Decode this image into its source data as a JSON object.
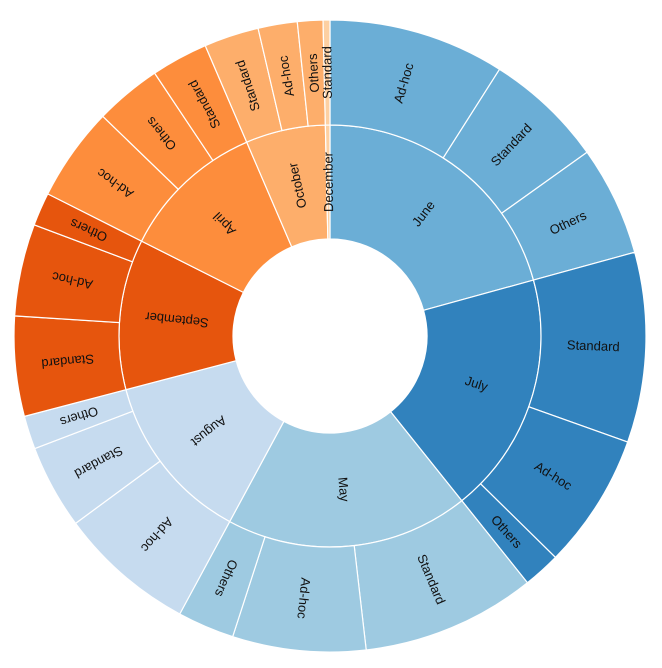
{
  "chart_data": {
    "type": "sunburst",
    "title": "",
    "unit": "percent of total (estimated)",
    "children": [
      {
        "name": "June",
        "color": "#6baed6",
        "children": [
          {
            "name": "Ad-hoc",
            "value": 9.0
          },
          {
            "name": "Standard",
            "value": 6.1
          },
          {
            "name": "Others",
            "value": 5.6
          }
        ]
      },
      {
        "name": "July",
        "color": "#3182bd",
        "children": [
          {
            "name": "Standard",
            "value": 9.7
          },
          {
            "name": "Ad-hoc",
            "value": 6.9
          },
          {
            "name": "Others",
            "value": 1.9
          }
        ]
      },
      {
        "name": "May",
        "color": "#9ecae1",
        "children": [
          {
            "name": "Standard",
            "value": 8.9
          },
          {
            "name": "Ad-hoc",
            "value": 6.8
          },
          {
            "name": "Others",
            "value": 2.9
          }
        ]
      },
      {
        "name": "August",
        "color": "#c6dbef",
        "children": [
          {
            "name": "Ad-hoc",
            "value": 7.0
          },
          {
            "name": "Standard",
            "value": 4.3
          },
          {
            "name": "Others",
            "value": 1.7
          }
        ]
      },
      {
        "name": "September",
        "color": "#e6550d",
        "children": [
          {
            "name": "Standard",
            "value": 5.1
          },
          {
            "name": "Ad-hoc",
            "value": 4.7
          },
          {
            "name": "Others",
            "value": 1.7
          }
        ]
      },
      {
        "name": "April",
        "color": "#fd8d3c",
        "children": [
          {
            "name": "Ad-hoc",
            "value": 4.8
          },
          {
            "name": "Others",
            "value": 3.4
          },
          {
            "name": "Standard",
            "value": 2.9
          }
        ]
      },
      {
        "name": "October",
        "color": "#fdae6b",
        "children": [
          {
            "name": "Standard",
            "value": 2.8
          },
          {
            "name": "Ad-hoc",
            "value": 2.0
          },
          {
            "name": "Others",
            "value": 1.3
          }
        ]
      },
      {
        "name": "December",
        "color": "#fdd0a2",
        "children": [
          {
            "name": "Standard",
            "value": 0.35
          }
        ]
      }
    ]
  }
}
